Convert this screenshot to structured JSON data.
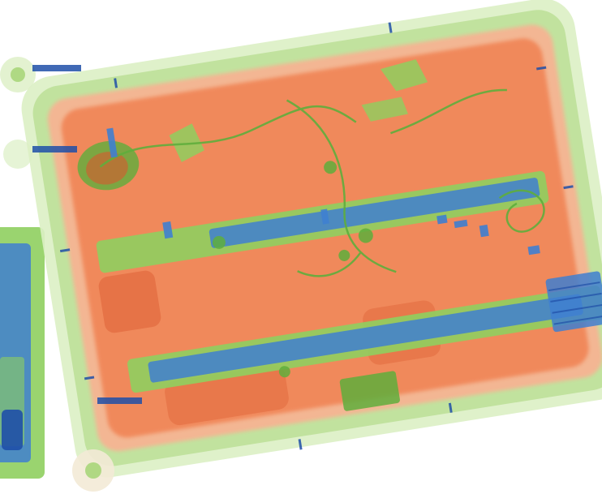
{
  "scan": {
    "background": "#ffffff",
    "colors": {
      "organic": "#f07a4a",
      "organic_light": "#f6b493",
      "organic_dark": "#d9582e",
      "inorganic": "#8fcf5f",
      "inorganic_dark": "#5fae3c",
      "metal": "#3f7fd0",
      "metal_dark": "#1f4fa8",
      "frame": "#a8d67a",
      "frame_light": "#dcefc4"
    }
  }
}
